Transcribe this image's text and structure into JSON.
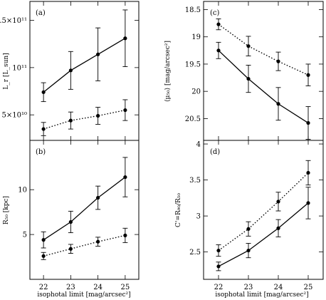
{
  "chart_data": [
    {
      "id": "a",
      "type": "line",
      "panel_label": "(a)",
      "ylabel": "L_r [L_sun]",
      "xlabel": "",
      "x": [
        22,
        23,
        24,
        25
      ],
      "xlim": [
        21.5,
        25.5
      ],
      "ylim": [
        23000000000.0,
        170000000000.0
      ],
      "y_ticks": [
        {
          "v": 50000000000.0,
          "t": "5×10¹⁰"
        },
        {
          "v": 100000000000.0,
          "t": "10¹¹"
        },
        {
          "v": 150000000000.0,
          "t": "1.5×10¹¹"
        }
      ],
      "series": [
        {
          "style": "solid",
          "values": [
            74000000000.0,
            97000000000.0,
            114000000000.0,
            131000000000.0
          ],
          "err_lo": [
            10000000000.0,
            20000000000.0,
            28000000000.0,
            30000000000.0
          ],
          "err_hi": [
            10000000000.0,
            20000000000.0,
            28000000000.0,
            30000000000.0
          ]
        },
        {
          "style": "dotted",
          "values": [
            35000000000.0,
            44000000000.0,
            49000000000.0,
            55000000000.0
          ],
          "err_lo": [
            7000000000.0,
            9000000000.0,
            9000000000.0,
            11000000000.0
          ],
          "err_hi": [
            7000000000.0,
            9000000000.0,
            9000000000.0,
            11000000000.0
          ]
        }
      ],
      "inverted_y": false
    },
    {
      "id": "b",
      "type": "line",
      "panel_label": "(b)",
      "ylabel": "R₅₀ [kpc]",
      "xlabel": "isophotal limit [mag/arcsec²]",
      "x": [
        22,
        23,
        24,
        25
      ],
      "xlim": [
        21.5,
        25.5
      ],
      "ylim": [
        0,
        15.5
      ],
      "y_ticks": [
        {
          "v": 5,
          "t": "5"
        },
        {
          "v": 10,
          "t": "10"
        }
      ],
      "x_ticks": [
        {
          "v": 22,
          "t": "22"
        },
        {
          "v": 23,
          "t": "23"
        },
        {
          "v": 24,
          "t": "24"
        },
        {
          "v": 25,
          "t": "25"
        }
      ],
      "series": [
        {
          "style": "solid",
          "values": [
            4.4,
            6.4,
            9.1,
            11.4
          ],
          "err_lo": [
            0.9,
            1.2,
            1.3,
            2.2
          ],
          "err_hi": [
            0.9,
            1.2,
            1.3,
            2.2
          ]
        },
        {
          "style": "dotted",
          "values": [
            2.6,
            3.4,
            4.2,
            4.9
          ],
          "err_lo": [
            0.4,
            0.5,
            0.5,
            0.8
          ],
          "err_hi": [
            0.4,
            0.5,
            0.5,
            0.8
          ]
        }
      ],
      "inverted_y": false
    },
    {
      "id": "c",
      "type": "line",
      "panel_label": "(c)",
      "ylabel": "⟨μ₅₀⟩ [mag/arcsec²]",
      "xlabel": "",
      "x": [
        22,
        23,
        24,
        25
      ],
      "xlim": [
        21.5,
        25.5
      ],
      "ylim": [
        18.35,
        20.9
      ],
      "y_ticks": [
        {
          "v": 18.5,
          "t": "18.5"
        },
        {
          "v": 19,
          "t": "19"
        },
        {
          "v": 19.5,
          "t": "19.5"
        },
        {
          "v": 20,
          "t": "20"
        },
        {
          "v": 20.5,
          "t": "20.5"
        }
      ],
      "series": [
        {
          "style": "solid",
          "values": [
            19.25,
            19.77,
            20.23,
            20.58
          ],
          "err_lo": [
            0.15,
            0.25,
            0.3,
            0.3
          ],
          "err_hi": [
            0.15,
            0.25,
            0.3,
            0.3
          ]
        },
        {
          "style": "dotted",
          "values": [
            18.77,
            19.17,
            19.45,
            19.7
          ],
          "err_lo": [
            0.1,
            0.18,
            0.17,
            0.2
          ],
          "err_hi": [
            0.1,
            0.18,
            0.17,
            0.2
          ]
        }
      ],
      "inverted_y": true
    },
    {
      "id": "d",
      "type": "line",
      "panel_label": "(d)",
      "ylabel": "C'=R₉₀/R₅₀",
      "xlabel": "isophotal limit [mag/arcsec²]",
      "x": [
        22,
        23,
        24,
        25
      ],
      "xlim": [
        21.5,
        25.5
      ],
      "ylim": [
        2.12,
        4.05
      ],
      "y_ticks": [
        {
          "v": 2.5,
          "t": "2.5"
        },
        {
          "v": 3,
          "t": "3"
        },
        {
          "v": 3.5,
          "t": "3.5"
        },
        {
          "v": 4,
          "t": "4"
        }
      ],
      "x_ticks": [
        {
          "v": 22,
          "t": "22"
        },
        {
          "v": 23,
          "t": "23"
        },
        {
          "v": 24,
          "t": "24"
        },
        {
          "v": 25,
          "t": "25"
        }
      ],
      "series": [
        {
          "style": "solid",
          "values": [
            2.3,
            2.52,
            2.83,
            3.18
          ],
          "err_lo": [
            0.06,
            0.1,
            0.12,
            0.22
          ],
          "err_hi": [
            0.06,
            0.1,
            0.12,
            0.22
          ]
        },
        {
          "style": "dotted",
          "values": [
            2.52,
            2.82,
            3.2,
            3.6
          ],
          "err_lo": [
            0.08,
            0.1,
            0.13,
            0.17
          ],
          "err_hi": [
            0.08,
            0.1,
            0.13,
            0.17
          ]
        }
      ],
      "inverted_y": false
    }
  ]
}
